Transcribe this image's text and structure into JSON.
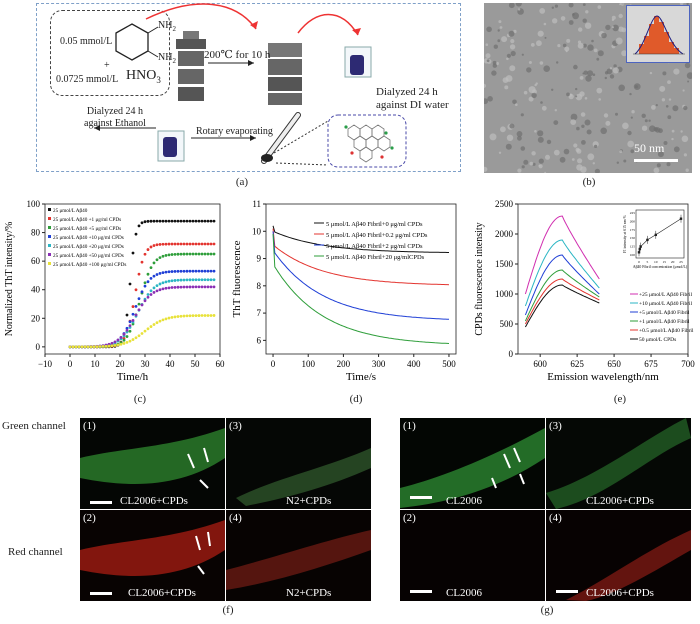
{
  "panel_captions": {
    "a": "(a)",
    "b": "(b)",
    "c": "(c)",
    "d": "(d)",
    "e": "(e)",
    "f": "(f)",
    "g": "(g)"
  },
  "scheme": {
    "reagent1": "0.05 mmol/L",
    "plus": "+",
    "reagent2": "0.0725 mmol/L",
    "acid": "HNO",
    "acid_sub": "3",
    "nh2_top": "NH",
    "nh2_top_sub": "2",
    "nh2_bot": "NH",
    "nh2_bot_sub": "2",
    "heating": "200℃  for 10 h",
    "dialysis_water": "Dialyzed 24 h\nagainst DI water",
    "dialysis_water_l1": "Dialyzed 24 h",
    "dialysis_water_l2": "against DI water",
    "dialysis_etoh_l1": "Dialyzed 24 h",
    "dialysis_etoh_l2": "against Ethanol",
    "rotary": "Rotary evaporating"
  },
  "tem": {
    "scale_bar": "50 nm"
  },
  "colors": {
    "blue": "#1f3fd6",
    "red": "#e3342f",
    "green": "#2e9e3a",
    "purple": "#8b2fb5",
    "cyan": "#2bb6c4",
    "magenta": "#d12fb0",
    "yellow": "#e8e23a",
    "black": "#111111"
  },
  "chart_data": [
    {
      "type": "scatter",
      "title": "",
      "xlabel": "Time/h",
      "ylabel": "Normalized ThT intensity/%",
      "xlim": [
        -10,
        60
      ],
      "ylim": [
        -5,
        100
      ],
      "xticks": [
        "−10",
        "0",
        "10",
        "20",
        "30",
        "40",
        "50",
        "60"
      ],
      "yticks": [
        "0",
        "20",
        "40",
        "60",
        "80",
        "100"
      ],
      "legend": [
        "25 μmol/L Aβ40",
        "25 μmol/L Aβ40 +1  μg/ml CPDs",
        "25 μmol/L Aβ40 +5  μg/ml CPDs",
        "25 μmol/L Aβ40 +10  μg/ml CPDs",
        "25 μmol/L Aβ40 +20  μg/ml CPDs",
        "25 μmol/L Aβ40 +50  μg/ml CPDs",
        "25 μmol/L Aβ40 +100 μg/ml CPDs"
      ],
      "series": [
        {
          "name": "25 μmol/L Aβ40",
          "plateau": 88,
          "mid": 24,
          "k": 0.9
        },
        {
          "name": "+1 μg/ml CPDs",
          "plateau": 72,
          "mid": 26,
          "k": 0.55
        },
        {
          "name": "+5 μg/ml CPDs",
          "plateau": 65,
          "mid": 28,
          "k": 0.4
        },
        {
          "name": "+10 μg/ml CPDs",
          "plateau": 53,
          "mid": 26,
          "k": 0.35
        },
        {
          "name": "+20 μg/ml CPDs",
          "plateau": 47,
          "mid": 27,
          "k": 0.3
        },
        {
          "name": "+50 μg/ml CPDs",
          "plateau": 42,
          "mid": 26,
          "k": 0.3
        },
        {
          "name": "+100 μg/ml CPDs",
          "plateau": 22,
          "mid": 30,
          "k": 0.25
        }
      ]
    },
    {
      "type": "line",
      "xlabel": "Time/s",
      "ylabel": "ThT fluorescence",
      "xlim": [
        -20,
        520
      ],
      "ylim": [
        5.5,
        11
      ],
      "xticks": [
        "0",
        "100",
        "200",
        "300",
        "400",
        "500"
      ],
      "yticks": [
        "6",
        "7",
        "8",
        "9",
        "10",
        "11"
      ],
      "legend": [
        "5 μmol/L Aβ40 Fibril+0 μg/ml CPDs",
        "5 μmol/L Aβ40 Fibril+0.2 μg/ml CPDs",
        "5 μmol/L Aβ40 Fibril+2 μg/ml CPDs",
        "5 μmol/L Aβ40 Fibril+20 μg/mlCPDs"
      ],
      "series": [
        {
          "name": "+0 μg/ml CPDs",
          "start": 10.0,
          "end": 9.2
        },
        {
          "name": "+0.2 μg/ml CPDs",
          "start": 9.5,
          "end": 8.0
        },
        {
          "name": "+2 μg/ml CPDs",
          "start": 9.3,
          "end": 6.7
        },
        {
          "name": "+20 μg/ml CPDs",
          "start": 8.8,
          "end": 5.8
        }
      ]
    },
    {
      "type": "line",
      "xlabel": "Emission wavelength/nm",
      "ylabel": "CPDs fluorescence intensity",
      "xlim": [
        585,
        700
      ],
      "ylim": [
        0,
        2500
      ],
      "xticks": [
        "600",
        "625",
        "650",
        "675",
        "700"
      ],
      "yticks": [
        "0",
        "500",
        "1000",
        "1500",
        "2000",
        "2500"
      ],
      "legend": [
        "+25 μmol/L Aβ40 Fibril",
        "+10 μmol/L Aβ40 Fibril",
        "+5 μmol/L Aβ40 Fibril",
        "+1 μmol/L Aβ40 Fibril",
        "+0.5 μmol/L Aβ40 Fibril",
        "50 μmol/L CPDs"
      ],
      "series": [
        {
          "name": "+25 μmol/L",
          "peak": 2300,
          "start": 1000,
          "end": 1250
        },
        {
          "name": "+10 μmol/L",
          "peak": 1900,
          "start": 800,
          "end": 1100
        },
        {
          "name": "+5 μmol/L",
          "peak": 1650,
          "start": 650,
          "end": 1000
        },
        {
          "name": "+1 μmol/L",
          "peak": 1400,
          "start": 550,
          "end": 950
        },
        {
          "name": "+0.5 μmol/L",
          "peak": 1250,
          "start": 500,
          "end": 900
        },
        {
          "name": "50 μmol/L CPDs",
          "peak": 1150,
          "start": 450,
          "end": 850
        }
      ],
      "inset": {
        "xlabel": "Aβ40 Fibril concentration (μmol/L)",
        "ylabel": "FI intensity at 615 nm %",
        "yticks": [
          "100",
          "125",
          "150",
          "175",
          "200",
          "225"
        ],
        "xticks": [
          "0",
          "5",
          "10",
          "15",
          "20",
          "25"
        ]
      }
    }
  ],
  "fluorescence": {
    "row_green": "Green channel",
    "row_red": "Red channel",
    "f": [
      {
        "num": "(1)",
        "label": "CL2006+CPDs"
      },
      {
        "num": "(3)",
        "label": "N2+CPDs"
      },
      {
        "num": "(2)",
        "label": "CL2006+CPDs"
      },
      {
        "num": "(4)",
        "label": "N2+CPDs"
      }
    ],
    "g": [
      {
        "num": "(1)",
        "label": "CL2006"
      },
      {
        "num": "(3)",
        "label": "CL2006+CPDs"
      },
      {
        "num": "(2)",
        "label": "CL2006"
      },
      {
        "num": "(4)",
        "label": "CL2006+CPDs"
      }
    ]
  }
}
